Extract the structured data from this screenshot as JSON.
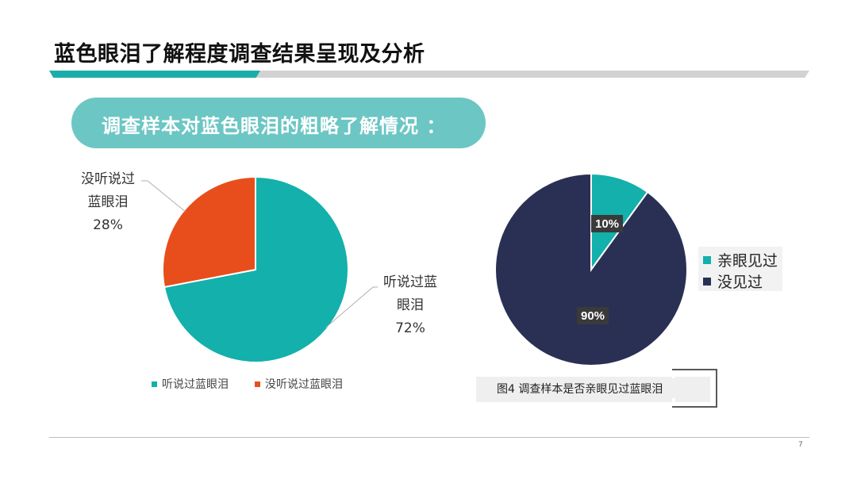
{
  "slide": {
    "title": "蓝色眼泪了解程度调查结果呈现及分析",
    "subtitle": "调查样本对蓝色眼泪的粗略了解情况 ：",
    "page_number": "7"
  },
  "chart_data": [
    {
      "type": "pie",
      "labels": [
        "听说过蓝眼泪",
        "没听说过蓝眼泪"
      ],
      "values": [
        72,
        28
      ],
      "colors": [
        "#13b0ac",
        "#e84e1c"
      ],
      "data_labels": [
        {
          "lines": [
            "听说过蓝",
            "眼泪",
            "72%"
          ]
        },
        {
          "lines": [
            "没听说过",
            "蓝眼泪",
            "28%"
          ]
        }
      ],
      "legend": [
        "听说过蓝眼泪",
        "没听说过蓝眼泪"
      ],
      "legend_position": "bottom"
    },
    {
      "type": "pie",
      "labels": [
        "亲眼见过",
        "没见过"
      ],
      "values": [
        10,
        90
      ],
      "colors": [
        "#13b0ac",
        "#2a3054"
      ],
      "data_labels": [
        "10%",
        "90%"
      ],
      "legend": [
        "亲眼见过",
        "没见过"
      ],
      "legend_position": "right",
      "caption": "图4  调查样本是否亲眼见过蓝眼泪"
    }
  ]
}
